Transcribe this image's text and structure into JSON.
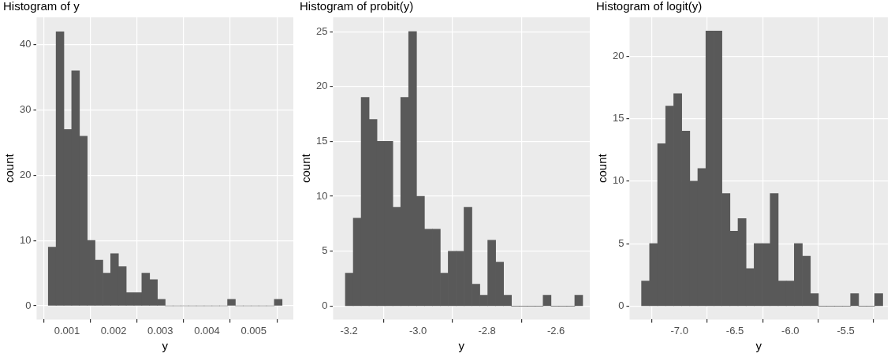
{
  "chart_data": [
    {
      "type": "histogram",
      "title": "Histogram of y",
      "xlabel": "y",
      "ylabel": "count",
      "color": "#595959",
      "grid": true,
      "bins": [
        0.0006,
        0.000767,
        0.000934,
        0.001101,
        0.001268,
        0.001435,
        0.001602,
        0.001769,
        0.001936,
        0.002103,
        0.00227,
        0.002437,
        0.002604,
        0.002771,
        0.002938,
        0.003105,
        0.003272,
        0.003439,
        0.003606,
        0.003773,
        0.00394,
        0.004107,
        0.004274,
        0.004441,
        0.004608,
        0.004775,
        0.004942,
        0.005109,
        0.005276,
        0.005443,
        0.00561
      ],
      "values": [
        9,
        42,
        27,
        36,
        26,
        10,
        7,
        5,
        8,
        6,
        2,
        2,
        5,
        4,
        1,
        0,
        0,
        0,
        0,
        0,
        0,
        0,
        0,
        1,
        0,
        0,
        0,
        0,
        0,
        1
      ],
      "xlim": [
        0.00035,
        0.00585
      ],
      "xticks": [
        0.001,
        0.002,
        0.003,
        0.004,
        0.005
      ],
      "ylim": [
        -2.1,
        44.2
      ],
      "yticks": [
        0,
        10,
        20,
        30,
        40
      ]
    },
    {
      "type": "histogram",
      "title": "Histogram of probit(y)",
      "xlabel": "y",
      "ylabel": "count",
      "color": "#595959",
      "grid": true,
      "bins": [
        -3.2105,
        -3.1876,
        -3.1646,
        -3.1417,
        -3.1188,
        -3.0958,
        -3.0729,
        -3.05,
        -3.0271,
        -3.0041,
        -2.9812,
        -2.9583,
        -2.9353,
        -2.9124,
        -2.8895,
        -2.8666,
        -2.8436,
        -2.8207,
        -2.7978,
        -2.7748,
        -2.7519,
        -2.729,
        -2.706,
        -2.6831,
        -2.6602,
        -2.6373,
        -2.6143,
        -2.5914,
        -2.5685,
        -2.5455,
        -2.5226
      ],
      "values": [
        3,
        8,
        19,
        17,
        15,
        15,
        9,
        19,
        25,
        10,
        7,
        7,
        3,
        5,
        5,
        9,
        2,
        1,
        6,
        4,
        1,
        0,
        0,
        0,
        0,
        1,
        0,
        0,
        0,
        1
      ],
      "xlim": [
        -3.246,
        -2.502
      ],
      "xticks": [
        -3.2,
        {
          "value": -3,
          "label": "-3.0"
        },
        -2.8,
        -2.6
      ],
      "ylim": [
        -1.22,
        26.3
      ],
      "yticks": [
        0,
        5,
        10,
        15,
        20,
        25
      ]
    },
    {
      "type": "histogram",
      "title": "Histogram of logit(y)",
      "xlabel": "y",
      "ylabel": "count",
      "color": "#595959",
      "grid": true,
      "bins": [
        -7.342,
        -7.2695,
        -7.1969,
        -7.1244,
        -7.0519,
        -6.9793,
        -6.9068,
        -6.8343,
        -6.7618,
        -6.6892,
        -6.6167,
        -6.5442,
        -6.4716,
        -6.3991,
        -6.3266,
        -6.254,
        -6.1815,
        -6.109,
        -6.0365,
        -5.9639,
        -5.8914,
        -5.8189,
        -5.7463,
        -5.6738,
        -5.6013,
        -5.5287,
        -5.4562,
        -5.3837,
        -5.3112,
        -5.2386,
        -5.1661
      ],
      "values": [
        2,
        5,
        13,
        16,
        17,
        14,
        10,
        11,
        22,
        22,
        9,
        6,
        7,
        3,
        5,
        5,
        9,
        2,
        2,
        5,
        4,
        1,
        0,
        0,
        0,
        0,
        1,
        0,
        0,
        1
      ],
      "xlim": [
        -7.45,
        -5.12
      ],
      "xticks": [
        {
          "value": -7,
          "label": "-7.0"
        },
        -6.5,
        {
          "value": -6,
          "label": "-6.0"
        },
        -5.5
      ],
      "ylim": [
        -1.07,
        23.1
      ],
      "yticks": [
        0,
        5,
        10,
        15,
        20
      ]
    }
  ]
}
